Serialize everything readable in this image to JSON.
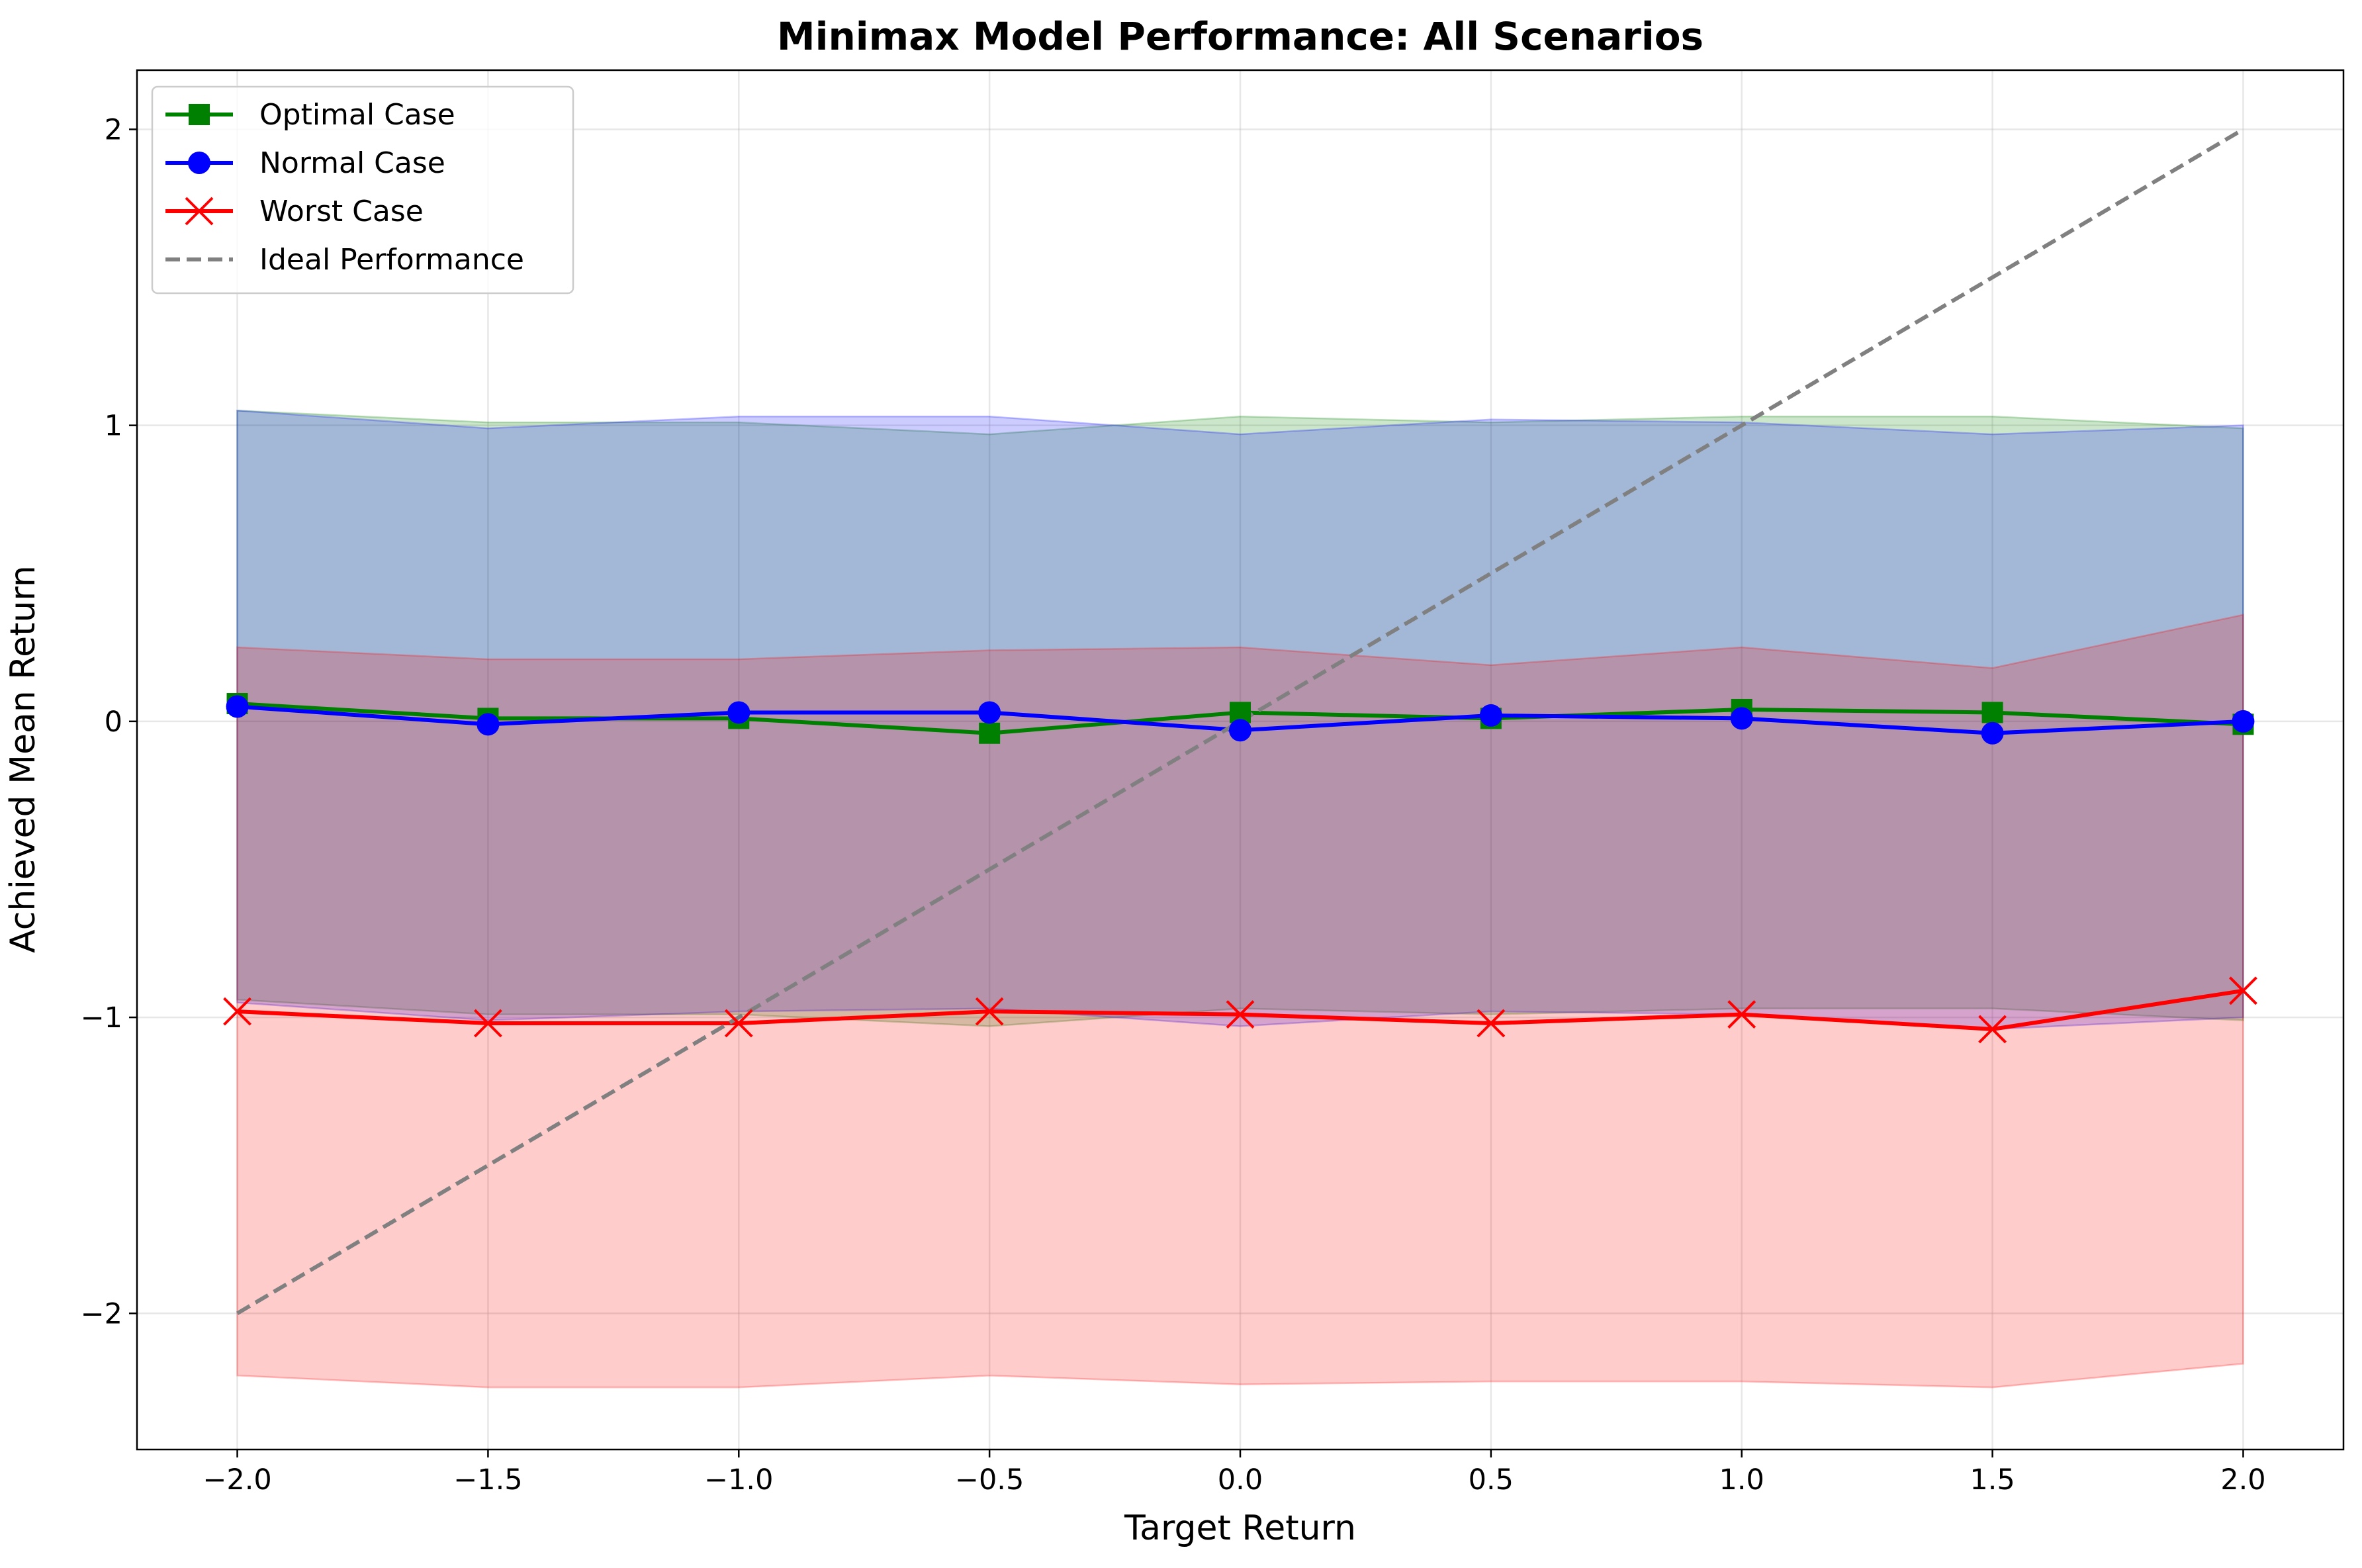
{
  "chart_data": {
    "type": "line",
    "title": "Minimax Model Performance: All Scenarios",
    "xlabel": "Target Return",
    "ylabel": "Achieved Mean Return",
    "xlim": [
      -2.2,
      2.2
    ],
    "ylim": [
      -2.46,
      2.2
    ],
    "x": [
      -2.0,
      -1.5,
      -1.0,
      -0.5,
      0.0,
      0.5,
      1.0,
      1.5,
      2.0
    ],
    "x_tick_labels": [
      "−2.0",
      "−1.5",
      "−1.0",
      "−0.5",
      "0.0",
      "0.5",
      "1.0",
      "1.5",
      "2.0"
    ],
    "y_ticks": [
      -2,
      -1,
      0,
      1,
      2
    ],
    "y_tick_labels": [
      "−2",
      "−1",
      "0",
      "1",
      "2"
    ],
    "grid": true,
    "legend_position": "upper-left",
    "series": [
      {
        "name": "Optimal Case",
        "color": "#008000",
        "marker": "square",
        "values": [
          0.06,
          0.01,
          0.01,
          -0.04,
          0.03,
          0.01,
          0.04,
          0.03,
          -0.01
        ],
        "band_upper": [
          1.05,
          1.01,
          1.01,
          0.97,
          1.03,
          1.01,
          1.03,
          1.03,
          0.99
        ],
        "band_lower": [
          -0.94,
          -0.99,
          -0.99,
          -1.03,
          -0.97,
          -0.99,
          -0.97,
          -0.97,
          -1.01
        ]
      },
      {
        "name": "Normal Case",
        "color": "#0000ff",
        "marker": "circle",
        "values": [
          0.05,
          -0.01,
          0.03,
          0.03,
          -0.03,
          0.02,
          0.01,
          -0.04,
          0.0
        ],
        "band_upper": [
          1.05,
          0.99,
          1.03,
          1.03,
          0.97,
          1.02,
          1.01,
          0.97,
          1.0
        ],
        "band_lower": [
          -0.95,
          -1.01,
          -0.98,
          -0.97,
          -1.03,
          -0.98,
          -0.99,
          -1.04,
          -1.0
        ]
      },
      {
        "name": "Worst Case",
        "color": "#ff0000",
        "marker": "x",
        "values": [
          -0.98,
          -1.02,
          -1.02,
          -0.98,
          -0.99,
          -1.02,
          -0.99,
          -1.04,
          -0.91
        ],
        "band_upper": [
          0.25,
          0.21,
          0.21,
          0.24,
          0.25,
          0.19,
          0.25,
          0.18,
          0.36
        ],
        "band_lower": [
          -2.21,
          -2.25,
          -2.25,
          -2.21,
          -2.24,
          -2.23,
          -2.23,
          -2.25,
          -2.17
        ]
      },
      {
        "name": "Ideal Performance",
        "color": "#808080",
        "marker": "none",
        "dashed": true,
        "values": [
          -2.0,
          -1.5,
          -1.0,
          -0.5,
          0.0,
          0.5,
          1.0,
          1.5,
          2.0
        ]
      }
    ]
  }
}
